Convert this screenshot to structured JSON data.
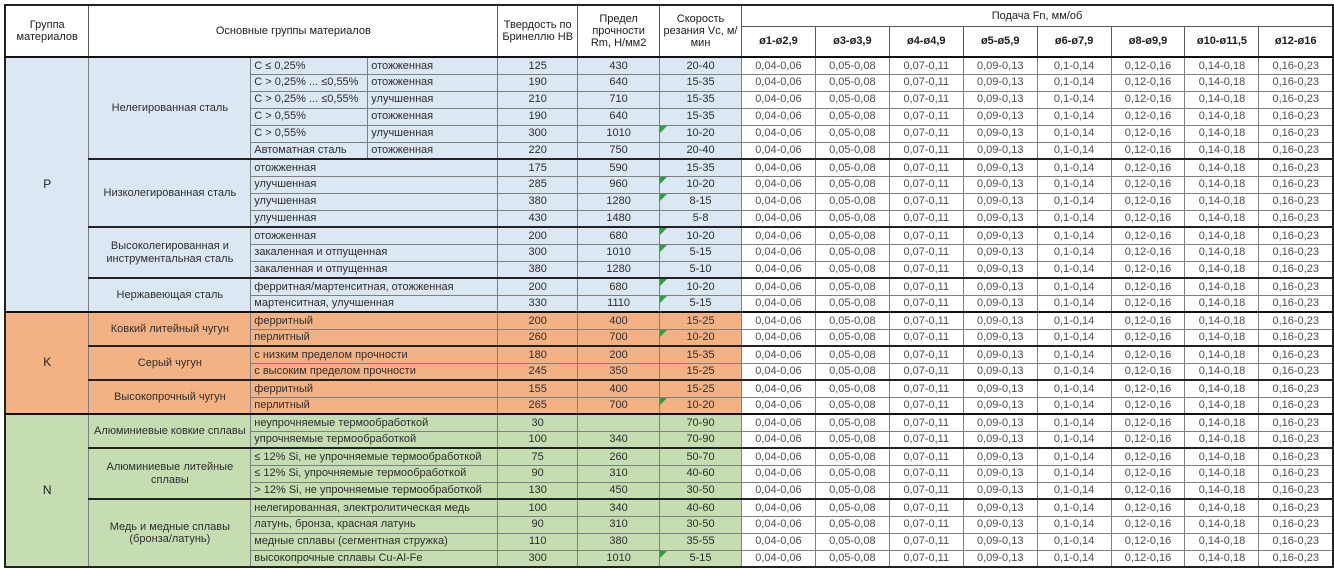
{
  "header": {
    "col_group": "Группа материалов",
    "col_materials": "Основные группы материалов",
    "col_hardness": "Твердость по Бринеллю HB",
    "col_strength": "Предел прочности Rm, Н/мм2",
    "col_speed": "Скорость резания Vc, м/мин",
    "col_feed": "Подача Fn, мм/об",
    "diameters": [
      "ø1-ø2,9",
      "ø3-ø3,9",
      "ø4-ø4,9",
      "ø5-ø5,9",
      "ø6-ø7,9",
      "ø8-ø9,9",
      "ø10-ø11,5",
      "ø12-ø16"
    ]
  },
  "feed_values": [
    "0,04-0,06",
    "0,05-0,08",
    "0,07-0,11",
    "0,09-0,13",
    "0,1-0,14",
    "0,12-0,16",
    "0,14-0,18",
    "0,16-0,23"
  ],
  "colors": {
    "group_p_bg": "#dbe7f3",
    "group_k_bg": "#f4b183",
    "group_n_bg": "#c6ddb2",
    "flag_triangle": "#2f9e3e"
  },
  "groups": [
    {
      "code": "P",
      "sections": [
        {
          "name": "Нелегированная сталь",
          "split": true,
          "rows": [
            {
              "prop": "C ≤ 0,25%",
              "state": "отожженная",
              "hb": "125",
              "rm": "430",
              "vc": "20-40",
              "flag": false
            },
            {
              "prop": "C > 0,25% ... ≤0,55%",
              "state": "отожженная",
              "hb": "190",
              "rm": "640",
              "vc": "15-35",
              "flag": false
            },
            {
              "prop": "C > 0,25% ... ≤0,55%",
              "state": "улучшенная",
              "hb": "210",
              "rm": "710",
              "vc": "15-35",
              "flag": false
            },
            {
              "prop": "C > 0,55%",
              "state": "отожженная",
              "hb": "190",
              "rm": "640",
              "vc": "15-35",
              "flag": false
            },
            {
              "prop": "C > 0,55%",
              "state": "улучшенная",
              "hb": "300",
              "rm": "1010",
              "vc": "10-20",
              "flag": true
            },
            {
              "prop": "Автоматная сталь",
              "state": "отожженная",
              "hb": "220",
              "rm": "750",
              "vc": "20-40",
              "flag": false
            }
          ]
        },
        {
          "name": "Низколегированная сталь",
          "split": false,
          "rows": [
            {
              "desc": "отожженная",
              "hb": "175",
              "rm": "590",
              "vc": "15-35",
              "flag": false
            },
            {
              "desc": "улучшенная",
              "hb": "285",
              "rm": "960",
              "vc": "10-20",
              "flag": true
            },
            {
              "desc": "улучшенная",
              "hb": "380",
              "rm": "1280",
              "vc": "8-15",
              "flag": true
            },
            {
              "desc": "улучшенная",
              "hb": "430",
              "rm": "1480",
              "vc": "5-8",
              "flag": false
            }
          ]
        },
        {
          "name": "Высоколегированная и инструментальная сталь",
          "split": false,
          "rows": [
            {
              "desc": "отожженная",
              "hb": "200",
              "rm": "680",
              "vc": "10-20",
              "flag": true
            },
            {
              "desc": "закаленная и отпущенная",
              "hb": "300",
              "rm": "1010",
              "vc": "5-15",
              "flag": true
            },
            {
              "desc": "закаленная и отпущенная",
              "hb": "380",
              "rm": "1280",
              "vc": "5-10",
              "flag": false
            }
          ]
        },
        {
          "name": "Нержавеющая сталь",
          "split": false,
          "rows": [
            {
              "desc": "ферритная/мартенситная, отожженная",
              "hb": "200",
              "rm": "680",
              "vc": "10-20",
              "flag": true
            },
            {
              "desc": "мартенситная, улучшенная",
              "hb": "330",
              "rm": "1110",
              "vc": "5-15",
              "flag": true
            }
          ]
        }
      ]
    },
    {
      "code": "K",
      "sections": [
        {
          "name": "Ковкий литейный чугун",
          "split": false,
          "rows": [
            {
              "desc": "ферритный",
              "hb": "200",
              "rm": "400",
              "vc": "15-25",
              "flag": false
            },
            {
              "desc": "перлитный",
              "hb": "260",
              "rm": "700",
              "vc": "10-20",
              "flag": true
            }
          ]
        },
        {
          "name": "Серый чугун",
          "split": false,
          "rows": [
            {
              "desc": "с низким пределом прочности",
              "hb": "180",
              "rm": "200",
              "vc": "15-35",
              "flag": false
            },
            {
              "desc": "с высоким пределом прочности",
              "hb": "245",
              "rm": "350",
              "vc": "15-25",
              "flag": false
            }
          ]
        },
        {
          "name": "Высокопрочный чугун",
          "split": false,
          "rows": [
            {
              "desc": "ферритный",
              "hb": "155",
              "rm": "400",
              "vc": "15-25",
              "flag": false
            },
            {
              "desc": "перлитный",
              "hb": "265",
              "rm": "700",
              "vc": "10-20",
              "flag": true
            }
          ]
        }
      ]
    },
    {
      "code": "N",
      "sections": [
        {
          "name": "Алюминиевые ковкие сплавы",
          "split": false,
          "rows": [
            {
              "desc": "неупрочняемые термообработкой",
              "hb": "30",
              "rm": "",
              "vc": "70-90",
              "flag": false
            },
            {
              "desc": "упрочняемые термообработкой",
              "hb": "100",
              "rm": "340",
              "vc": "70-90",
              "flag": false
            }
          ]
        },
        {
          "name": "Алюминиевые литейные сплавы",
          "split": false,
          "rows": [
            {
              "desc": "≤ 12% Si, не упрочняемые термообработкой",
              "hb": "75",
              "rm": "260",
              "vc": "50-70",
              "flag": false
            },
            {
              "desc": "≤ 12% Si, упрочняемые термообработкой",
              "hb": "90",
              "rm": "310",
              "vc": "40-60",
              "flag": false
            },
            {
              "desc": "> 12% Si, не упрочняемые термообработкой",
              "hb": "130",
              "rm": "450",
              "vc": "30-50",
              "flag": false
            }
          ]
        },
        {
          "name": "Медь и медные сплавы (бронза/латунь)",
          "split": false,
          "rows": [
            {
              "desc": "нелегированная, электролитическая медь",
              "hb": "100",
              "rm": "340",
              "vc": "40-60",
              "flag": false
            },
            {
              "desc": "латунь, бронза, красная латунь",
              "hb": "90",
              "rm": "310",
              "vc": "30-50",
              "flag": false
            },
            {
              "desc": "медные сплавы (сегментная стружка)",
              "hb": "110",
              "rm": "380",
              "vc": "35-55",
              "flag": false
            },
            {
              "desc": "высокопрочные сплавы Cu-Al-Fe",
              "hb": "300",
              "rm": "1010",
              "vc": "5-15",
              "flag": true
            }
          ]
        }
      ]
    }
  ]
}
